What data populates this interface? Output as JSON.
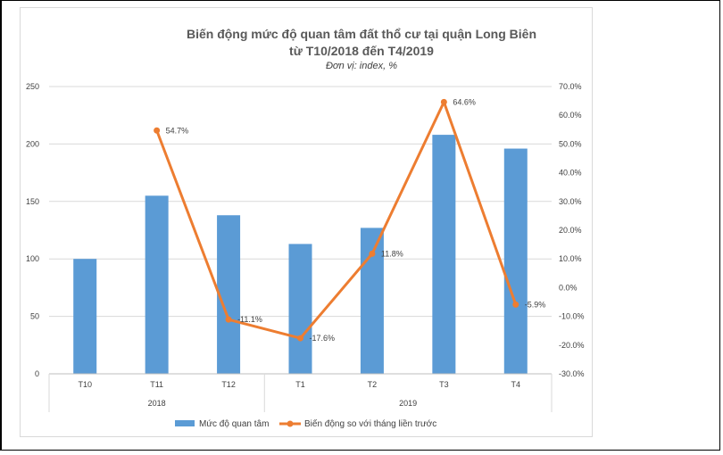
{
  "chart_data": {
    "type": "bar+line",
    "title_line1": "Biến động mức độ quan tâm đất thổ cư tại quận Long Biên",
    "title_line2": "từ T10/2018 đến T4/2019",
    "subtitle": "Đơn vị: index, %",
    "categories": [
      "T10",
      "T11",
      "T12",
      "T1",
      "T2",
      "T3",
      "T4"
    ],
    "year_groups": [
      {
        "label": "2018",
        "start": 0,
        "end": 2
      },
      {
        "label": "2019",
        "start": 3,
        "end": 6
      }
    ],
    "series": [
      {
        "name": "Mức độ quan tâm",
        "type": "bar",
        "axis": "left",
        "color": "#5b9bd5",
        "values": [
          100,
          155,
          138,
          113,
          127,
          208,
          196
        ]
      },
      {
        "name": "Biến động so với tháng liền trước",
        "type": "line",
        "axis": "right",
        "color": "#ed7d31",
        "values": [
          null,
          54.7,
          -11.1,
          -17.6,
          11.8,
          64.6,
          -5.9
        ],
        "labels": [
          "",
          "54.7%",
          "-11.1%",
          "-17.6%",
          "11.8%",
          "64.6%",
          "-5.9%"
        ]
      }
    ],
    "y_left": {
      "min": 0,
      "max": 250,
      "ticks": [
        0,
        50,
        100,
        150,
        200,
        250
      ]
    },
    "y_right": {
      "min": -30,
      "max": 70,
      "ticks": [
        -30,
        -20,
        -10,
        0,
        10,
        20,
        30,
        40,
        50,
        60,
        70
      ],
      "tick_labels": [
        "-30.0%",
        "-20.0%",
        "-10.0%",
        "0.0%",
        "10.0%",
        "20.0%",
        "30.0%",
        "40.0%",
        "50.0%",
        "60.0%",
        "70.0%"
      ]
    },
    "grid": true,
    "legend_position": "bottom"
  }
}
